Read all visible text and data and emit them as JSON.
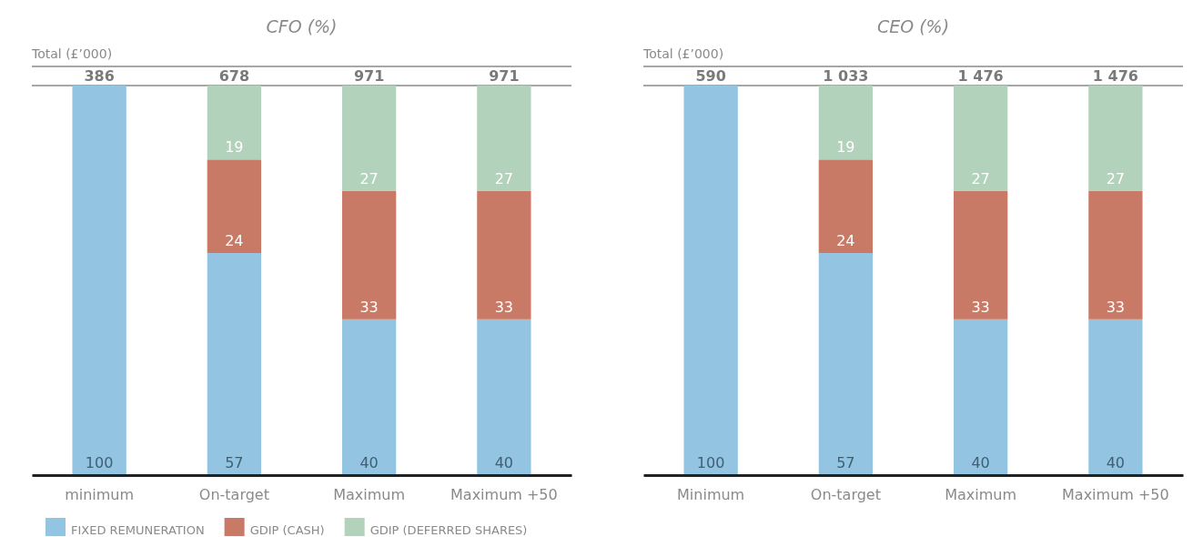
{
  "chart_data": [
    {
      "type": "bar",
      "title": "CFO (%)",
      "stacked": true,
      "data_labels": true,
      "legend": "bottom",
      "ylim": [
        0,
        100
      ],
      "tick_labels": "x",
      "annotations": [
        "Total (£’000)",
        "386",
        "678",
        "971",
        "971"
      ],
      "categories": [
        "minimum",
        "On-target",
        "Maximum",
        "Maximum +50"
      ],
      "series": [
        {
          "name": "FIXED REMUNERATION",
          "color": "#93c4e1",
          "values": [
            100,
            57,
            40,
            40
          ]
        },
        {
          "name": "GDIP (CASH)",
          "color": "#c97a66",
          "values": [
            null,
            24,
            33,
            33
          ]
        },
        {
          "name": "GDIP (DEFERRED SHARES)",
          "color": "#b3d2bb",
          "values": [
            null,
            19,
            27,
            27
          ]
        }
      ]
    },
    {
      "type": "bar",
      "title": "CEO (%)",
      "stacked": true,
      "data_labels": true,
      "ylim": [
        0,
        100
      ],
      "tick_labels": "x",
      "annotations": [
        "Total (£’000)",
        "590",
        "1 033",
        "1 476",
        "1 476"
      ],
      "categories": [
        "Minimum",
        "On-target",
        "Maximum",
        "Maximum +50"
      ],
      "series": [
        {
          "color": "#93c4e1",
          "values": [
            100,
            57,
            40,
            40
          ]
        },
        {
          "color": "#c97a66",
          "values": [
            null,
            24,
            33,
            33
          ]
        },
        {
          "color": "#b3d2bb",
          "values": [
            null,
            19,
            27,
            27
          ]
        }
      ]
    }
  ]
}
